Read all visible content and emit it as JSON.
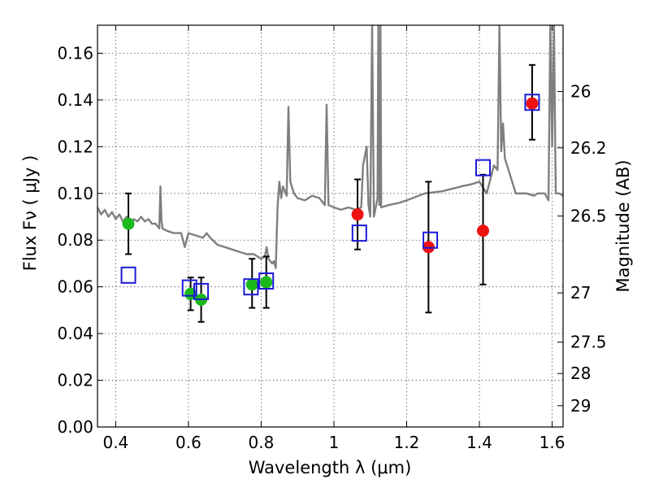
{
  "chart_data": {
    "type": "scatter",
    "title": "",
    "xlabel": "Wavelength  λ (μm)",
    "ylabel": "Flux  Fν  ( μJy )",
    "ylabel_right": "Magnitude (AB)",
    "xlim": [
      0.35,
      1.63
    ],
    "ylim": [
      0.0,
      0.172
    ],
    "grid": true,
    "x_ticks": [
      {
        "value": 0.4,
        "label": "0.4"
      },
      {
        "value": 0.6,
        "label": "0.6"
      },
      {
        "value": 0.8,
        "label": "0.8"
      },
      {
        "value": 1.0,
        "label": "1"
      },
      {
        "value": 1.2,
        "label": "1.2"
      },
      {
        "value": 1.4,
        "label": "1.4"
      },
      {
        "value": 1.6,
        "label": "1.6"
      }
    ],
    "y_ticks": [
      {
        "value": 0.0,
        "label": "0.00"
      },
      {
        "value": 0.02,
        "label": "0.02"
      },
      {
        "value": 0.04,
        "label": "0.04"
      },
      {
        "value": 0.06,
        "label": "0.06"
      },
      {
        "value": 0.08,
        "label": "0.08"
      },
      {
        "value": 0.1,
        "label": "0.10"
      },
      {
        "value": 0.12,
        "label": "0.12"
      },
      {
        "value": 0.14,
        "label": "0.14"
      },
      {
        "value": 0.16,
        "label": "0.16"
      }
    ],
    "right_ticks": [
      {
        "flux": 0.1436,
        "label": "26"
      },
      {
        "flux": 0.1195,
        "label": "26.2"
      },
      {
        "flux": 0.0903,
        "label": "26.5"
      },
      {
        "flux": 0.0574,
        "label": "27"
      },
      {
        "flux": 0.0363,
        "label": "27.5"
      },
      {
        "flux": 0.0229,
        "label": "28"
      },
      {
        "flux": 0.0091,
        "label": "29"
      }
    ],
    "series": [
      {
        "name": "model spectrum",
        "style": "line",
        "color": "#7f7f7f",
        "x": [
          0.35,
          0.36,
          0.37,
          0.38,
          0.39,
          0.4,
          0.41,
          0.42,
          0.43,
          0.44,
          0.45,
          0.46,
          0.47,
          0.48,
          0.49,
          0.5,
          0.51,
          0.52,
          0.523,
          0.526,
          0.529,
          0.54,
          0.56,
          0.58,
          0.59,
          0.6,
          0.62,
          0.64,
          0.65,
          0.66,
          0.68,
          0.7,
          0.72,
          0.74,
          0.76,
          0.78,
          0.8,
          0.81,
          0.815,
          0.82,
          0.83,
          0.835,
          0.84,
          0.845,
          0.85,
          0.855,
          0.86,
          0.87,
          0.875,
          0.88,
          0.89,
          0.9,
          0.92,
          0.94,
          0.96,
          0.975,
          0.98,
          0.985,
          1.0,
          1.02,
          1.04,
          1.06,
          1.075,
          1.08,
          1.09,
          1.095,
          1.1,
          1.105,
          1.11,
          1.12,
          1.122,
          1.125,
          1.128,
          1.13,
          1.15,
          1.18,
          1.2,
          1.25,
          1.3,
          1.35,
          1.38,
          1.4,
          1.42,
          1.44,
          1.45,
          1.455,
          1.46,
          1.465,
          1.47,
          1.48,
          1.5,
          1.53,
          1.55,
          1.56,
          1.58,
          1.59,
          1.595,
          1.6,
          1.605,
          1.61,
          1.62,
          1.63
        ],
        "y": [
          0.094,
          0.091,
          0.093,
          0.09,
          0.092,
          0.089,
          0.091,
          0.088,
          0.09,
          0.087,
          0.089,
          0.088,
          0.09,
          0.088,
          0.089,
          0.087,
          0.087,
          0.085,
          0.103,
          0.088,
          0.085,
          0.084,
          0.083,
          0.083,
          0.077,
          0.083,
          0.082,
          0.081,
          0.083,
          0.081,
          0.078,
          0.077,
          0.076,
          0.075,
          0.074,
          0.074,
          0.072,
          0.073,
          0.077,
          0.072,
          0.07,
          0.071,
          0.068,
          0.094,
          0.105,
          0.098,
          0.103,
          0.099,
          0.137,
          0.105,
          0.1,
          0.098,
          0.097,
          0.099,
          0.098,
          0.095,
          0.138,
          0.095,
          0.094,
          0.093,
          0.094,
          0.093,
          0.094,
          0.112,
          0.12,
          0.095,
          0.09,
          0.172,
          0.09,
          0.098,
          0.172,
          0.095,
          0.172,
          0.094,
          0.095,
          0.096,
          0.097,
          0.1,
          0.101,
          0.103,
          0.104,
          0.105,
          0.1,
          0.112,
          0.11,
          0.172,
          0.118,
          0.13,
          0.115,
          0.11,
          0.1,
          0.1,
          0.099,
          0.1,
          0.1,
          0.097,
          0.172,
          0.12,
          0.172,
          0.1,
          0.1,
          0.099
        ]
      },
      {
        "name": "green observed points",
        "style": "marker-circle",
        "color": "#1aba1a",
        "points": [
          {
            "x": 0.435,
            "y": 0.087,
            "err": [
              0.074,
              0.1
            ]
          },
          {
            "x": 0.606,
            "y": 0.057,
            "err": [
              0.05,
              0.064
            ]
          },
          {
            "x": 0.635,
            "y": 0.0545,
            "err": [
              0.045,
              0.064
            ]
          },
          {
            "x": 0.775,
            "y": 0.061,
            "err": [
              0.051,
              0.072
            ]
          },
          {
            "x": 0.814,
            "y": 0.062,
            "err": [
              0.051,
              0.073
            ]
          }
        ]
      },
      {
        "name": "red observed points",
        "style": "marker-circle",
        "color": "#ee1111",
        "points": [
          {
            "x": 1.065,
            "y": 0.091,
            "err": [
              0.076,
              0.106
            ]
          },
          {
            "x": 1.26,
            "y": 0.077,
            "err": [
              0.049,
              0.105
            ]
          },
          {
            "x": 1.41,
            "y": 0.084,
            "err": [
              0.061,
              0.108
            ]
          },
          {
            "x": 1.545,
            "y": 0.1385,
            "err": [
              0.123,
              0.155
            ]
          }
        ]
      },
      {
        "name": "model photometry",
        "style": "marker-square-open",
        "color": "#1a1ad6",
        "points": [
          {
            "x": 0.435,
            "y": 0.065
          },
          {
            "x": 0.603,
            "y": 0.0595
          },
          {
            "x": 0.635,
            "y": 0.058
          },
          {
            "x": 0.772,
            "y": 0.06
          },
          {
            "x": 0.814,
            "y": 0.0625
          },
          {
            "x": 1.07,
            "y": 0.083
          },
          {
            "x": 1.265,
            "y": 0.08
          },
          {
            "x": 1.41,
            "y": 0.111
          },
          {
            "x": 1.545,
            "y": 0.139
          }
        ]
      }
    ]
  }
}
